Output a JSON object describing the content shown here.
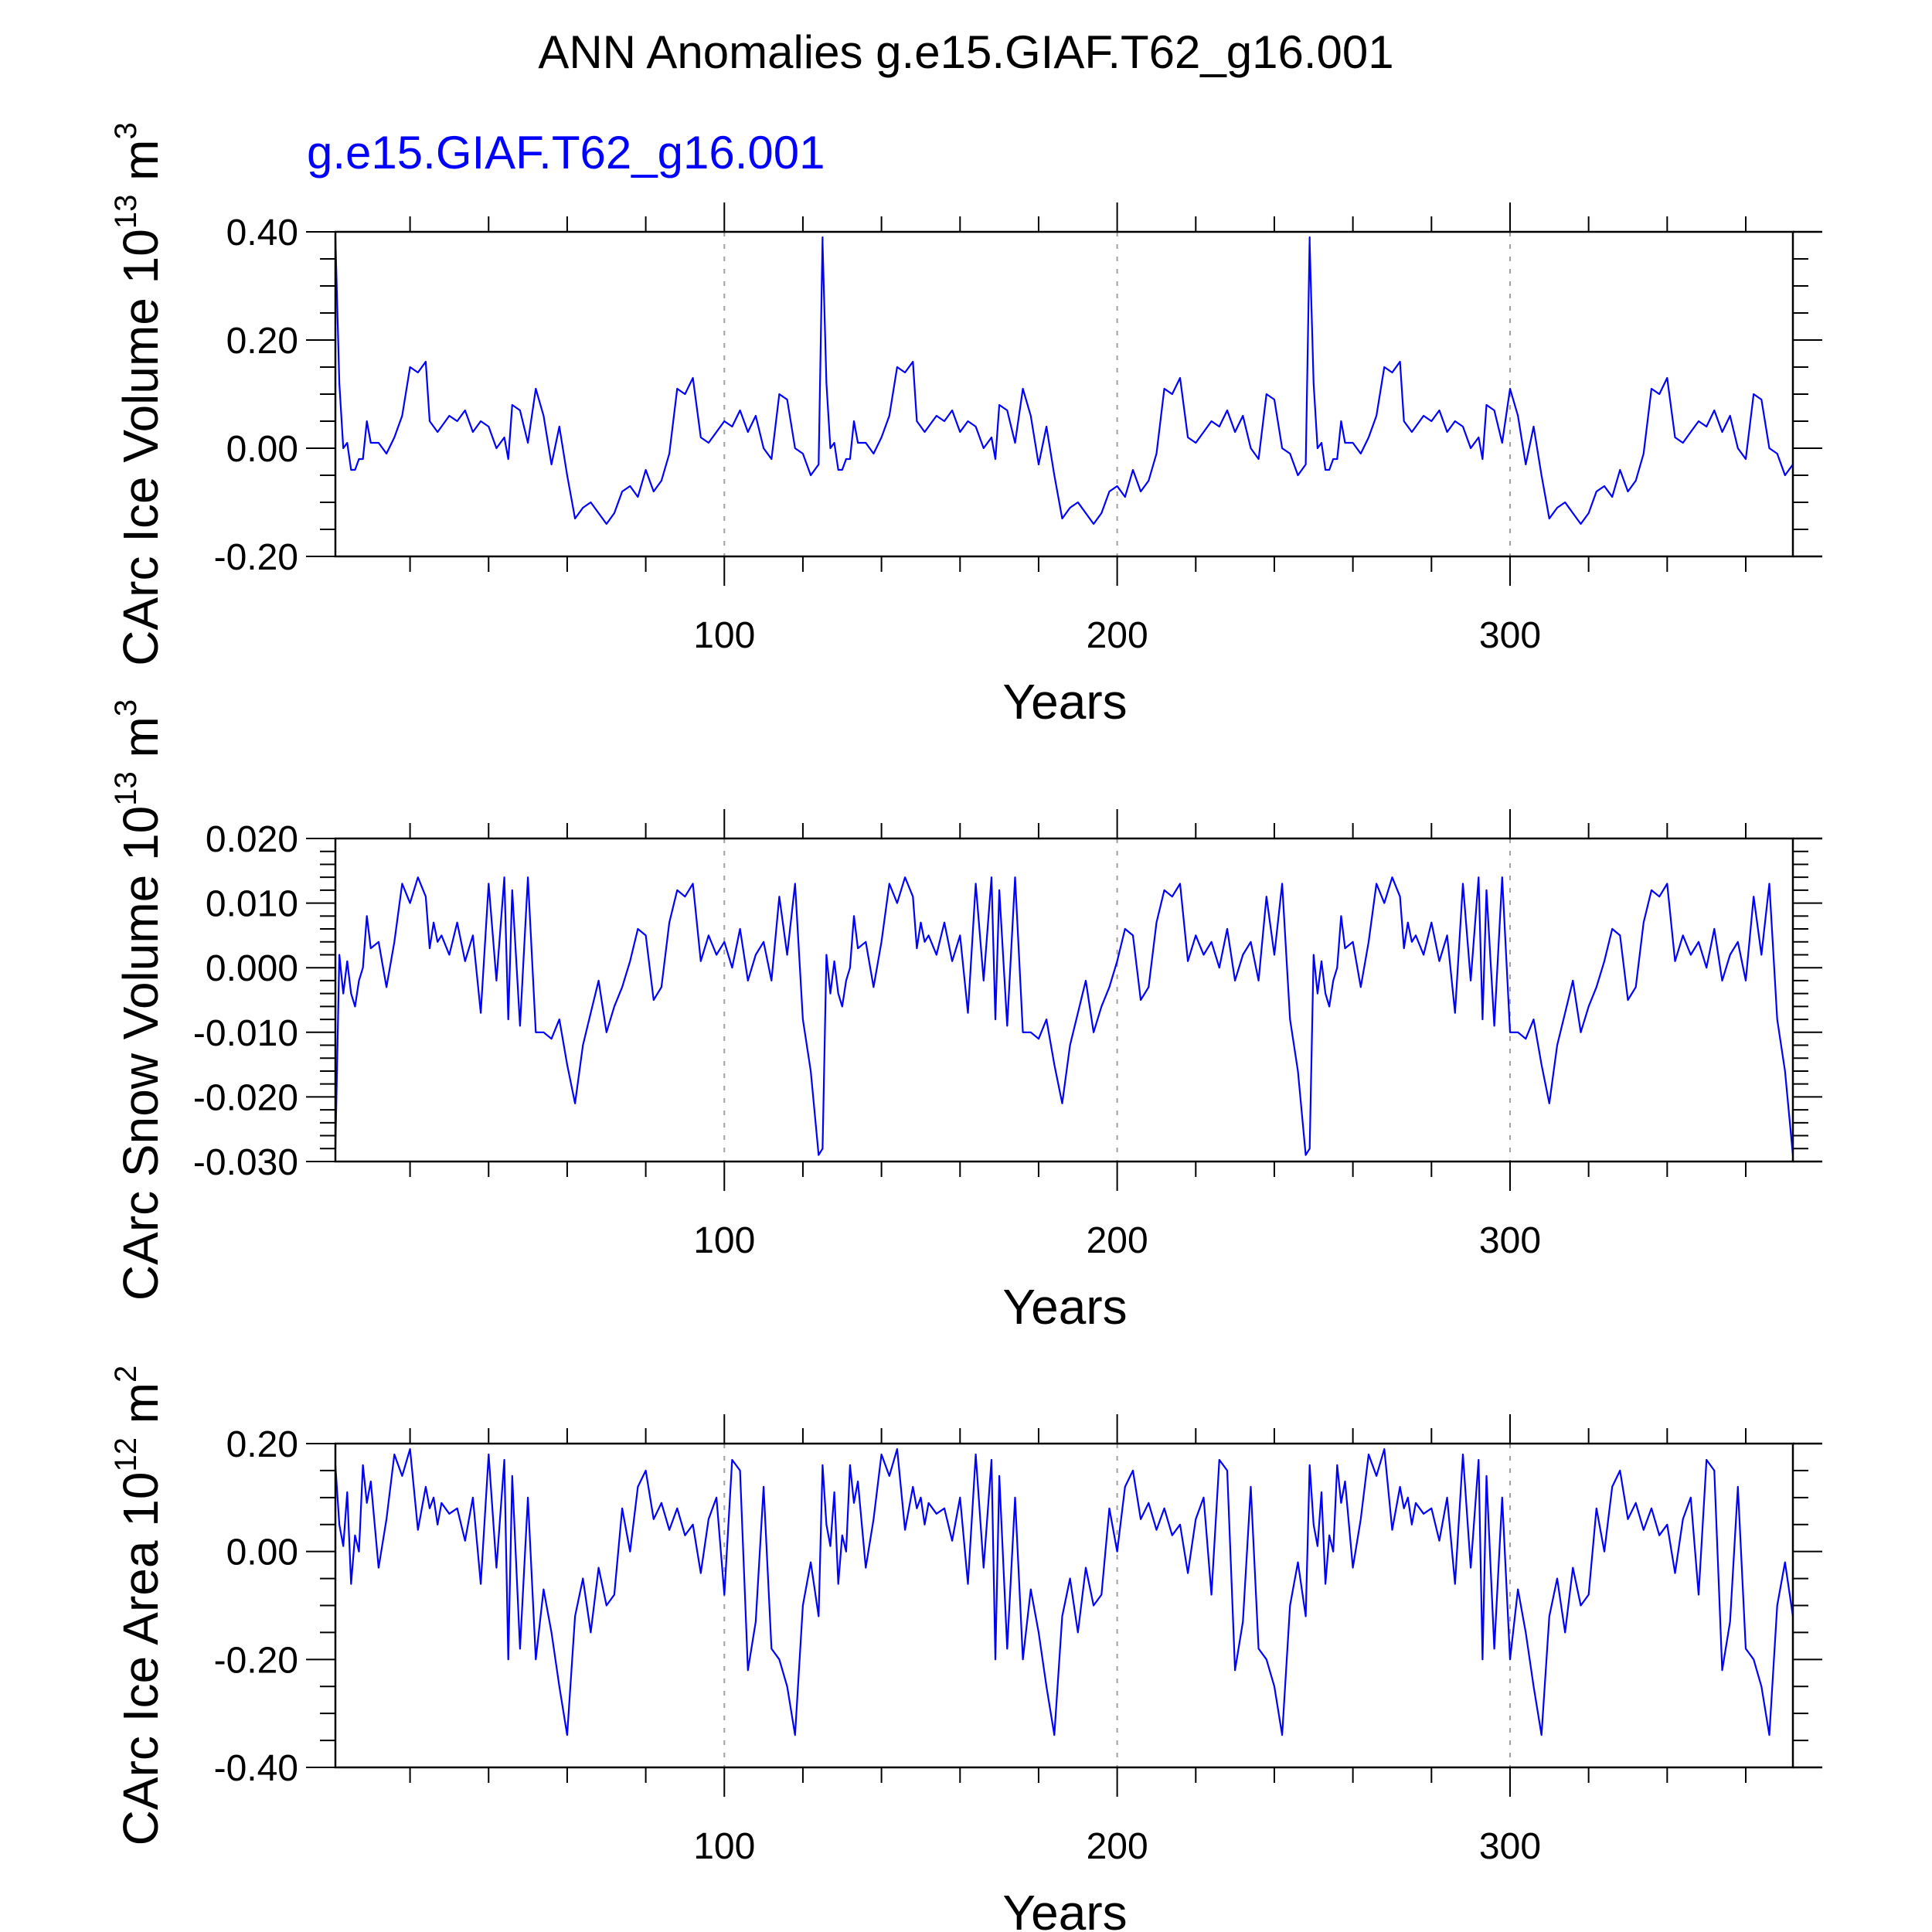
{
  "title": "ANN Anomalies g.e15.GIAF.T62_g16.001",
  "line_color": "#0000ff",
  "axis_color": "#000000",
  "grid_color": "#a0a0a0",
  "chart_data": [
    {
      "type": "line",
      "subtitle": "g.e15.GIAF.T62_g16.001",
      "ylabel": "CArc Ice Volume 10",
      "ylabel_exp": "13",
      "ylabel_unit": " m",
      "ylabel_unit_exp": "3",
      "xlabel": "Years",
      "xlim": [
        1,
        372
      ],
      "ylim": [
        -0.2,
        0.4
      ],
      "xticks": [
        100,
        200,
        300
      ],
      "xtick_labels": [
        "100",
        "200",
        "300"
      ],
      "yticks": [
        -0.2,
        0.0,
        0.2,
        0.4
      ],
      "ytick_labels": [
        "-0.20",
        "0.00",
        "0.20",
        "0.40"
      ],
      "yminor_step": 0.05,
      "xminor_step": 20,
      "grid": "vertical dashed at major x ticks",
      "period": 124,
      "series": [
        {
          "name": "g.e15.GIAF.T62_g16.001",
          "x": [
            1,
            2,
            3,
            4,
            5,
            6,
            7,
            8,
            9,
            10,
            12,
            14,
            16,
            18,
            20,
            22,
            24,
            25,
            26,
            27,
            28,
            30,
            32,
            34,
            36,
            38,
            40,
            42,
            44,
            45,
            46,
            48,
            50,
            52,
            54,
            56,
            58,
            60,
            62,
            64,
            66,
            68,
            70,
            72,
            74,
            76,
            78,
            80,
            82,
            84,
            86,
            88,
            90,
            92,
            94,
            96,
            98,
            100,
            102,
            104,
            106,
            108,
            110,
            112,
            114,
            116,
            118,
            120,
            122,
            124
          ],
          "values": [
            0.39,
            0.12,
            0.0,
            0.01,
            -0.04,
            -0.04,
            -0.02,
            -0.02,
            0.05,
            0.01,
            0.01,
            -0.01,
            0.02,
            0.06,
            0.15,
            0.14,
            0.16,
            0.05,
            0.04,
            0.03,
            0.04,
            0.06,
            0.05,
            0.07,
            0.03,
            0.05,
            0.04,
            0.0,
            0.02,
            -0.02,
            0.08,
            0.07,
            0.01,
            0.11,
            0.06,
            -0.03,
            0.04,
            -0.05,
            -0.13,
            -0.11,
            -0.1,
            -0.12,
            -0.14,
            -0.12,
            -0.08,
            -0.07,
            -0.09,
            -0.04,
            -0.08,
            -0.06,
            -0.01,
            0.11,
            0.1,
            0.13,
            0.02,
            0.01,
            0.03,
            0.05,
            0.04,
            0.07,
            0.03,
            0.06,
            0.0,
            -0.02,
            0.1,
            0.09,
            0.0,
            -0.01,
            -0.05,
            -0.03
          ]
        }
      ],
      "spike_x": [
        125,
        249
      ],
      "spike_value": 0.38
    },
    {
      "type": "line",
      "subtitle": "",
      "ylabel": "CArc Snow Volume 10",
      "ylabel_exp": "13",
      "ylabel_unit": " m",
      "ylabel_unit_exp": "3",
      "xlabel": "Years",
      "xlim": [
        1,
        372
      ],
      "ylim": [
        -0.03,
        0.02
      ],
      "xticks": [
        100,
        200,
        300
      ],
      "xtick_labels": [
        "100",
        "200",
        "300"
      ],
      "yticks": [
        -0.03,
        -0.02,
        -0.01,
        0.0,
        0.01,
        0.02
      ],
      "ytick_labels": [
        "-0.030",
        "-0.020",
        "-0.010",
        "0.000",
        "0.010",
        "0.020"
      ],
      "yminor_step": 0.002,
      "xminor_step": 20,
      "grid": "vertical dashed at major x ticks",
      "period": 124,
      "series": [
        {
          "name": "g.e15.GIAF.T62_g16.001",
          "x": [
            1,
            2,
            3,
            4,
            5,
            6,
            7,
            8,
            9,
            10,
            12,
            14,
            16,
            18,
            20,
            22,
            24,
            25,
            26,
            27,
            28,
            30,
            32,
            34,
            36,
            38,
            40,
            42,
            44,
            45,
            46,
            48,
            50,
            52,
            54,
            56,
            58,
            60,
            62,
            64,
            66,
            68,
            70,
            72,
            74,
            76,
            78,
            80,
            82,
            84,
            86,
            88,
            90,
            92,
            94,
            96,
            98,
            100,
            102,
            104,
            106,
            108,
            110,
            112,
            114,
            116,
            118,
            120,
            122,
            124
          ],
          "values": [
            -0.028,
            0.002,
            -0.004,
            0.001,
            -0.004,
            -0.006,
            -0.002,
            0.0,
            0.008,
            0.003,
            0.004,
            -0.003,
            0.004,
            0.013,
            0.01,
            0.014,
            0.011,
            0.003,
            0.007,
            0.004,
            0.005,
            0.002,
            0.007,
            0.001,
            0.005,
            -0.007,
            0.013,
            -0.002,
            0.014,
            -0.008,
            0.012,
            -0.009,
            0.014,
            -0.01,
            -0.01,
            -0.011,
            -0.008,
            -0.015,
            -0.021,
            -0.012,
            -0.007,
            -0.002,
            -0.01,
            -0.006,
            -0.003,
            0.001,
            0.006,
            0.005,
            -0.005,
            -0.003,
            0.007,
            0.012,
            0.011,
            0.013,
            0.001,
            0.005,
            0.002,
            0.004,
            0.0,
            0.006,
            -0.002,
            0.002,
            0.004,
            -0.002,
            0.011,
            0.002,
            0.013,
            -0.008,
            -0.016,
            -0.029
          ]
        }
      ],
      "spike_x": [],
      "spike_value": null
    },
    {
      "type": "line",
      "subtitle": "",
      "ylabel": "CArc Ice Area 10",
      "ylabel_exp": "12",
      "ylabel_unit": " m",
      "ylabel_unit_exp": "2",
      "xlabel": "Years",
      "xlim": [
        1,
        372
      ],
      "ylim": [
        -0.4,
        0.2
      ],
      "xticks": [
        100,
        200,
        300
      ],
      "xtick_labels": [
        "100",
        "200",
        "300"
      ],
      "yticks": [
        -0.4,
        -0.2,
        0.0,
        0.2
      ],
      "ytick_labels": [
        "-0.40",
        "-0.20",
        "0.00",
        "0.20"
      ],
      "yminor_step": 0.05,
      "xminor_step": 20,
      "grid": "vertical dashed at major x ticks",
      "period": 124,
      "series": [
        {
          "name": "g.e15.GIAF.T62_g16.001",
          "x": [
            1,
            2,
            3,
            4,
            5,
            6,
            7,
            8,
            9,
            10,
            12,
            14,
            16,
            18,
            20,
            22,
            24,
            25,
            26,
            27,
            28,
            30,
            32,
            34,
            36,
            38,
            40,
            42,
            44,
            45,
            46,
            48,
            50,
            52,
            54,
            56,
            58,
            60,
            62,
            64,
            66,
            68,
            70,
            72,
            74,
            76,
            78,
            80,
            82,
            84,
            86,
            88,
            90,
            92,
            94,
            96,
            98,
            100,
            102,
            104,
            106,
            108,
            110,
            112,
            114,
            116,
            118,
            120,
            122,
            124
          ],
          "values": [
            0.16,
            0.05,
            0.01,
            0.11,
            -0.06,
            0.03,
            0.0,
            0.16,
            0.09,
            0.13,
            -0.03,
            0.06,
            0.18,
            0.14,
            0.19,
            0.04,
            0.12,
            0.08,
            0.1,
            0.05,
            0.09,
            0.07,
            0.08,
            0.02,
            0.1,
            -0.06,
            0.18,
            -0.03,
            0.17,
            -0.2,
            0.14,
            -0.18,
            0.1,
            -0.2,
            -0.07,
            -0.15,
            -0.25,
            -0.34,
            -0.12,
            -0.05,
            -0.15,
            -0.03,
            -0.1,
            -0.08,
            0.08,
            0.0,
            0.12,
            0.15,
            0.06,
            0.09,
            0.04,
            0.08,
            0.03,
            0.05,
            -0.04,
            0.06,
            0.1,
            -0.08,
            0.17,
            0.15,
            -0.22,
            -0.13,
            0.12,
            -0.18,
            -0.2,
            -0.25,
            -0.34,
            -0.1,
            -0.02,
            -0.12
          ]
        }
      ],
      "spike_x": [],
      "spike_value": null
    }
  ]
}
